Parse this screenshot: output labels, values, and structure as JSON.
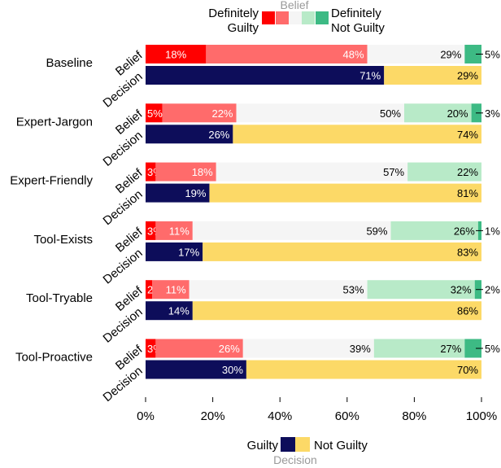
{
  "chart_data": {
    "type": "bar",
    "orientation": "horizontal",
    "stacked": true,
    "title": "",
    "xlabel": "",
    "ylabel": "",
    "xlim": [
      0,
      100
    ],
    "x_ticks": [
      "0%",
      "20%",
      "40%",
      "60%",
      "80%",
      "100%"
    ],
    "grid": false,
    "categories": [
      "Baseline",
      "Expert-Jargon",
      "Expert-Friendly",
      "Tool-Exists",
      "Tool-Tryable",
      "Tool-Proactive"
    ],
    "row_labels": {
      "belief": "Belief",
      "decision": "Decision"
    },
    "belief_series": [
      {
        "name": "Definitely Guilty",
        "color": "#ff0000",
        "values": [
          18,
          5,
          3,
          3,
          2,
          3
        ],
        "labels": [
          "18%",
          "5%",
          "3%",
          "3%",
          "2%",
          "3%"
        ]
      },
      {
        "name": "",
        "color": "#ff6b6b",
        "values": [
          48,
          22,
          18,
          11,
          11,
          26
        ],
        "labels": [
          "48%",
          "22%",
          "18%",
          "11%",
          "11%",
          "26%"
        ]
      },
      {
        "name": "",
        "color": "#f5f5f5",
        "values": [
          29,
          50,
          57,
          59,
          53,
          39
        ],
        "labels": [
          "29%",
          "50%",
          "57%",
          "59%",
          "53%",
          "39%"
        ]
      },
      {
        "name": "",
        "color": "#b8eac8",
        "values": [
          0,
          20,
          22,
          26,
          32,
          27
        ],
        "labels": [
          "",
          "20%",
          "22%",
          "26%",
          "32%",
          "27%"
        ]
      },
      {
        "name": "Definitely Not Guilty",
        "color": "#3dba84",
        "values": [
          5,
          3,
          0,
          1,
          2,
          5
        ],
        "labels": [
          "5%",
          "3%",
          "",
          "1%",
          "2%",
          "5%"
        ]
      }
    ],
    "decision_series": [
      {
        "name": "Guilty",
        "color": "#0d0d5a",
        "values": [
          71,
          26,
          19,
          17,
          14,
          30
        ],
        "labels": [
          "71%",
          "26%",
          "19%",
          "17%",
          "14%",
          "30%"
        ]
      },
      {
        "name": "Not Guilty",
        "color": "#fcd967",
        "values": [
          29,
          74,
          81,
          83,
          86,
          70
        ],
        "labels": [
          "29%",
          "74%",
          "81%",
          "83%",
          "86%",
          "70%"
        ]
      }
    ],
    "legend_belief": {
      "title": "Belief",
      "left_label": [
        "Definitely",
        "Guilty"
      ],
      "right_label": [
        "Definitely",
        "Not Guilty"
      ],
      "placement": "top"
    },
    "legend_decision": {
      "title": "Decision",
      "left_label": "Guilty",
      "right_label": "Not Guilty",
      "placement": "bottom"
    }
  }
}
